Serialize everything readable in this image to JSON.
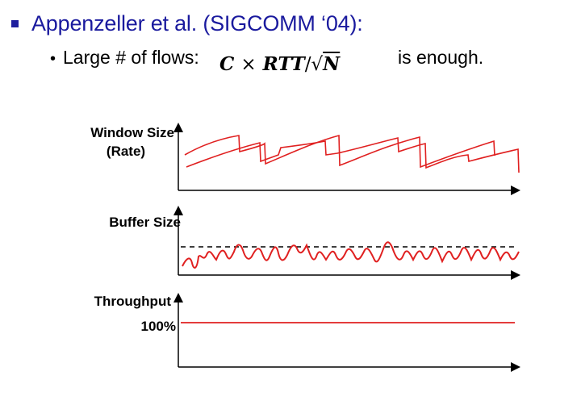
{
  "slide": {
    "bullet1": "Appenzeller et al. (SIGCOMM ‘04):",
    "bullet2_prefix": "Large # of flows:",
    "formula": {
      "c": "C",
      "times": "×",
      "rtt": "RTT",
      "slash": "/",
      "sqrt": "√",
      "n": "N"
    },
    "bullet2_suffix": "is enough."
  },
  "panels": {
    "window": {
      "label_line1": "Window Size",
      "label_line2": "(Rate)"
    },
    "buffer": {
      "label": "Buffer Size"
    },
    "throughput": {
      "label": "Throughput",
      "level_label": "100%"
    }
  },
  "colors": {
    "title_blue": "#1a1a9e",
    "curve_red": "#e02020",
    "axis": "#000000"
  }
}
